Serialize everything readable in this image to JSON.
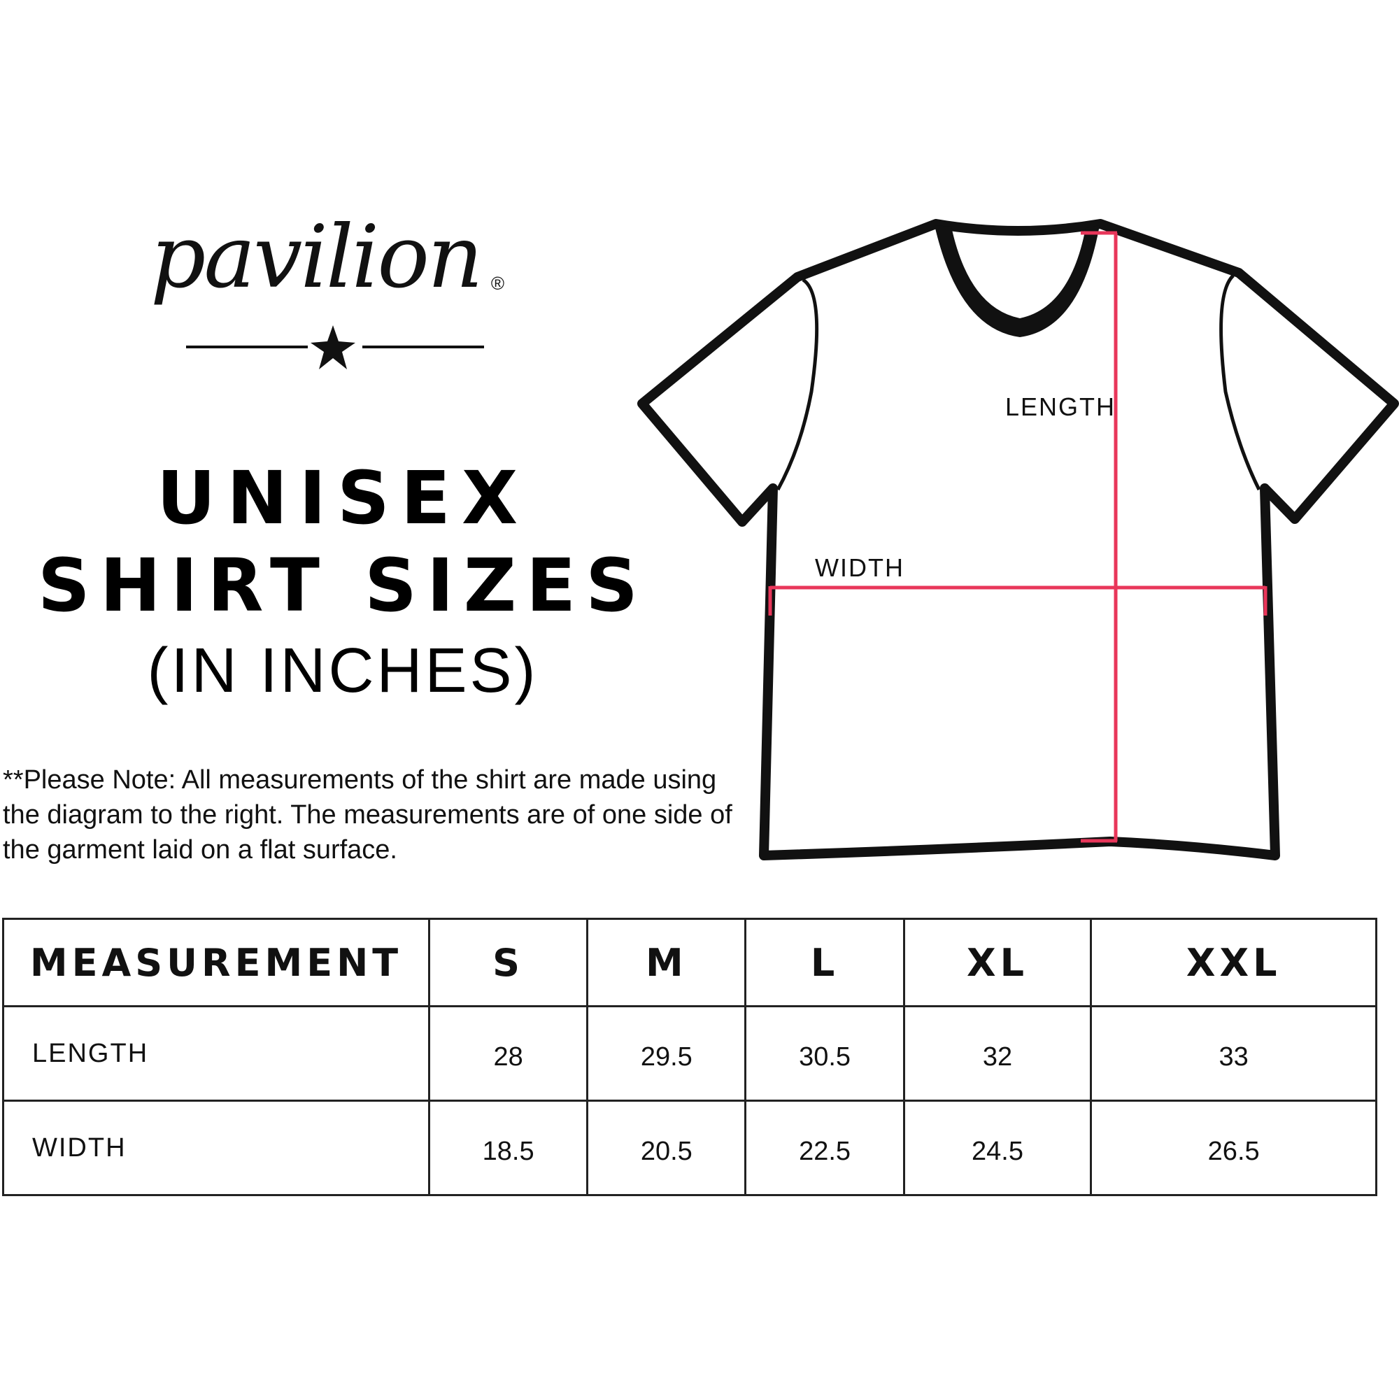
{
  "brand": {
    "logo_text": "pavilion",
    "registered_mark": "®"
  },
  "title": {
    "line1": "UNISEX",
    "line2": "SHIRT SIZES",
    "line3": "(IN INCHES)"
  },
  "note": "**Please Note:  All measurements of the shirt are made using the diagram to the right.  The measurements are of one side of the garment laid on a flat surface.",
  "diagram": {
    "length_label": "LENGTH",
    "width_label": "WIDTH",
    "measure_color": "#e8365a",
    "outline_color": "#111111"
  },
  "table": {
    "headers": [
      "MEASUREMENT",
      "S",
      "M",
      "L",
      "XL",
      "XXL"
    ],
    "rows": [
      {
        "label": "LENGTH",
        "values": [
          "28",
          "29.5",
          "30.5",
          "32",
          "33"
        ]
      },
      {
        "label": "WIDTH",
        "values": [
          "18.5",
          "20.5",
          "22.5",
          "24.5",
          "26.5"
        ]
      }
    ]
  }
}
